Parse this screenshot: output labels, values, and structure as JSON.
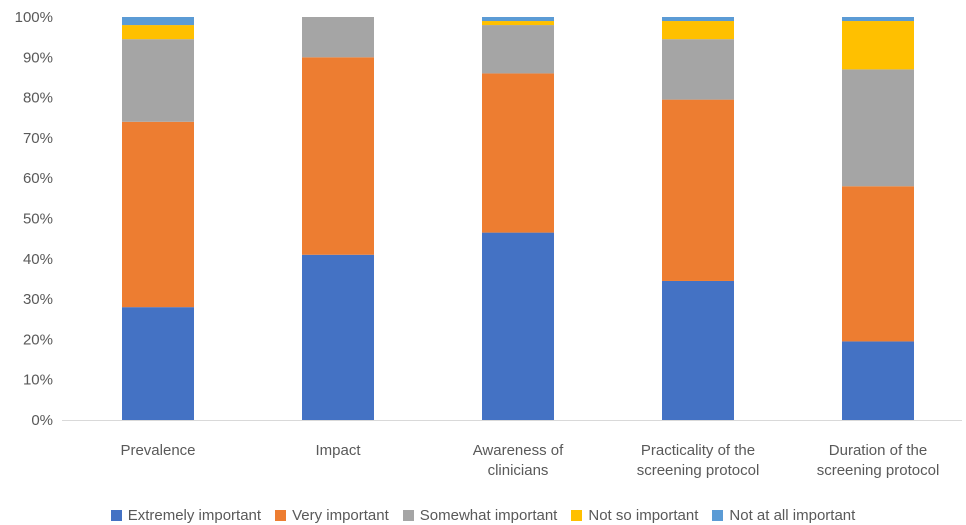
{
  "chart_data": {
    "type": "bar",
    "stacked": true,
    "normalized": true,
    "categories": [
      [
        "Prevalence"
      ],
      [
        "Impact"
      ],
      [
        "Awareness of",
        "clinicians"
      ],
      [
        "Practicality of the",
        "screening protocol"
      ],
      [
        "Duration of the",
        "screening protocol"
      ]
    ],
    "series": [
      {
        "name": "Extremely important",
        "color": "#4472C4",
        "values": [
          28,
          41,
          46.5,
          34.5,
          19.5
        ]
      },
      {
        "name": "Very important",
        "color": "#ED7D31",
        "values": [
          46,
          49,
          39.5,
          45,
          38.5
        ]
      },
      {
        "name": "Somewhat important",
        "color": "#A5A5A5",
        "values": [
          20.5,
          10,
          12,
          15,
          29
        ]
      },
      {
        "name": "Not so important",
        "color": "#FFC000",
        "values": [
          3.5,
          0,
          1,
          4.5,
          12
        ]
      },
      {
        "name": "Not at all important",
        "color": "#5B9BD5",
        "values": [
          2,
          0,
          1,
          1,
          1
        ]
      }
    ],
    "y_ticks": [
      "0%",
      "10%",
      "20%",
      "30%",
      "40%",
      "50%",
      "60%",
      "70%",
      "80%",
      "90%",
      "100%"
    ],
    "ylim": [
      0,
      100
    ],
    "grid": false,
    "legend_position": "bottom",
    "title": "",
    "xlabel": "",
    "ylabel": ""
  }
}
